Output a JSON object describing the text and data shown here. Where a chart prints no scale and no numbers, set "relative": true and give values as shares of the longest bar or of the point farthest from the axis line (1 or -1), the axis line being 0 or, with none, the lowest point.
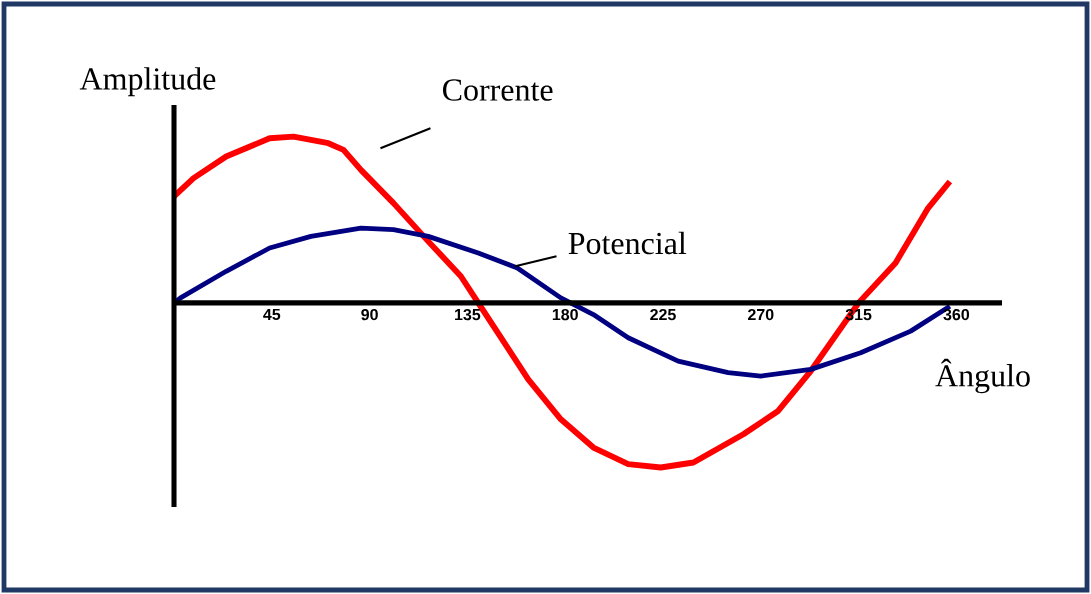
{
  "chart_data": {
    "type": "line",
    "xlabel": "Ângulo",
    "ylabel": "Amplitude",
    "relative": true,
    "xlim": [
      0,
      381
    ],
    "xticks": [
      45,
      90,
      135,
      180,
      225,
      270,
      315,
      360
    ],
    "series": [
      {
        "name": "Corrente",
        "color": "#ff0000",
        "x": [
          0,
          9,
          24,
          44,
          55,
          71,
          78,
          86,
          101,
          117,
          132,
          140,
          147,
          163,
          178,
          193,
          209,
          224,
          239,
          262,
          278,
          293,
          315,
          332,
          347,
          357
        ],
        "values": [
          0.64,
          0.75,
          0.88,
          0.99,
          1.0,
          0.96,
          0.92,
          0.8,
          0.6,
          0.37,
          0.16,
          0,
          -0.14,
          -0.46,
          -0.7,
          -0.87,
          -0.97,
          -0.99,
          -0.96,
          -0.79,
          -0.65,
          -0.41,
          0,
          0.24,
          0.57,
          0.73
        ]
      },
      {
        "name": "Potencial",
        "color": "#000080",
        "x": [
          0,
          3,
          24,
          44,
          63,
          86,
          101,
          117,
          140,
          158,
          178,
          193,
          209,
          232,
          255,
          270,
          293,
          316,
          339,
          357
        ],
        "values": [
          0,
          0.03,
          0.19,
          0.33,
          0.4,
          0.45,
          0.44,
          0.4,
          0.3,
          0.21,
          0.03,
          -0.07,
          -0.21,
          -0.35,
          -0.42,
          -0.44,
          -0.4,
          -0.3,
          -0.17,
          -0.02
        ]
      }
    ]
  }
}
